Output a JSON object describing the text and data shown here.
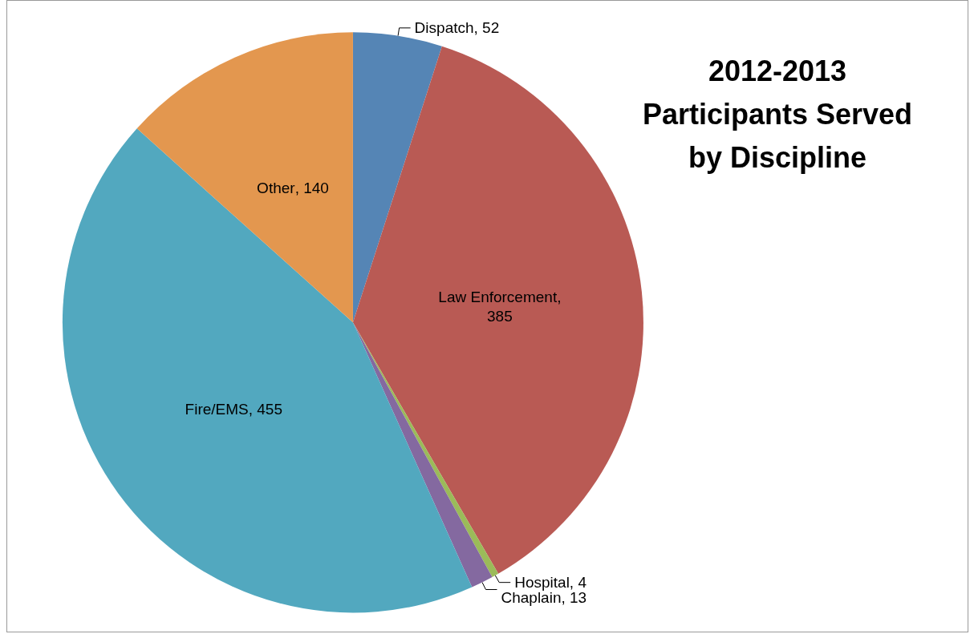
{
  "chart_data": {
    "type": "pie",
    "title": "2012-2013\nParticipants Served\nby Discipline",
    "categories": [
      "Dispatch",
      "Law Enforcement",
      "Hospital",
      "Chaplain",
      "Fire/EMS",
      "Other"
    ],
    "values": [
      52,
      385,
      4,
      13,
      455,
      140
    ],
    "colors": [
      "#5585b5",
      "#b95a54",
      "#9bbb59",
      "#8469a0",
      "#52a8bf",
      "#e3974f"
    ],
    "value_labels": [
      ", 52",
      ", 385",
      ", 4",
      ", 13",
      ", 455",
      ", 140"
    ],
    "legend": false
  }
}
